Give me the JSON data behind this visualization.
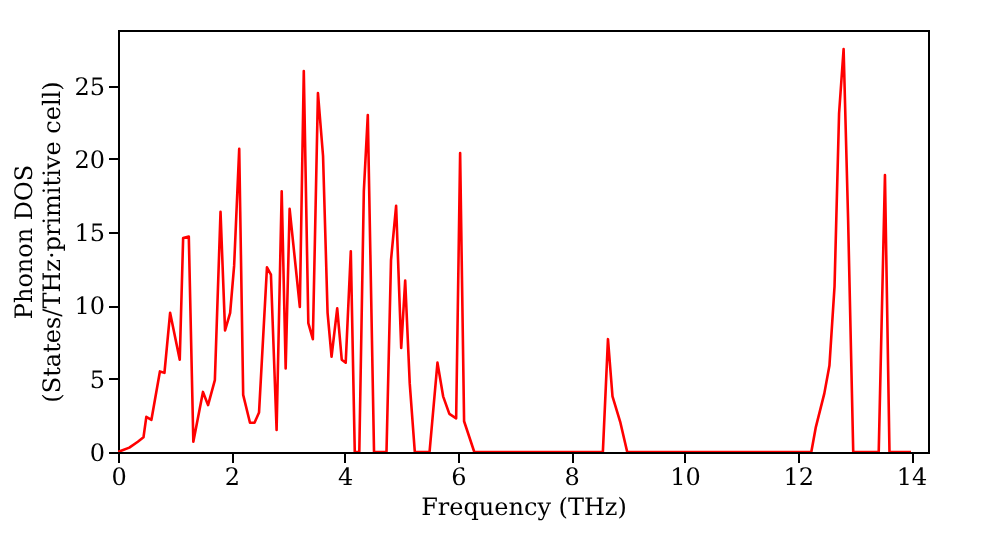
{
  "chart_data": {
    "type": "line",
    "xlabel": "Frequency (THz)",
    "ylabel": "Phonon DOS\n(States/THz·primitive cell)",
    "xlim": [
      0,
      14.3
    ],
    "ylim": [
      0,
      28.8
    ],
    "xticks": [
      0,
      2,
      4,
      6,
      8,
      10,
      12,
      14
    ],
    "yticks": [
      0,
      5,
      10,
      15,
      20,
      25
    ],
    "grid": false,
    "marker": "none",
    "line_style": "solid",
    "series": [
      {
        "color": "#ff0000",
        "x": [
          0,
          0.2,
          0.35,
          0.45,
          0.5,
          0.59,
          0.74,
          0.82,
          0.92,
          1.09,
          1.15,
          1.25,
          1.33,
          1.5,
          1.59,
          1.71,
          1.81,
          1.89,
          1.98,
          2.05,
          2.14,
          2.21,
          2.33,
          2.41,
          2.49,
          2.63,
          2.7,
          2.8,
          2.89,
          2.96,
          3.03,
          3.21,
          3.28,
          3.36,
          3.44,
          3.53,
          3.62,
          3.7,
          3.77,
          3.87,
          3.95,
          4.02,
          4.11,
          4.18,
          4.26,
          4.34,
          4.41,
          4.52,
          4.74,
          4.82,
          4.91,
          5.0,
          5.07,
          5.15,
          5.24,
          5.5,
          5.64,
          5.74,
          5.85,
          5.97,
          6.04,
          6.11,
          6.29,
          8.56,
          8.65,
          8.73,
          8.87,
          8.99,
          12.24,
          12.32,
          12.47,
          12.56,
          12.65,
          12.73,
          12.81,
          12.89,
          12.98,
          13.43,
          13.54,
          13.62,
          14.0
        ],
        "values": [
          0,
          0.3,
          0.7,
          1.0,
          2.4,
          2.2,
          5.5,
          5.4,
          9.5,
          6.3,
          14.6,
          14.7,
          0.7,
          4.1,
          3.2,
          4.9,
          16.4,
          8.3,
          9.5,
          12.7,
          20.7,
          3.9,
          2.0,
          2.0,
          2.7,
          12.6,
          12.1,
          1.5,
          17.8,
          5.7,
          16.6,
          9.9,
          26.0,
          8.8,
          7.7,
          24.5,
          20.2,
          9.5,
          6.5,
          9.8,
          6.3,
          6.1,
          13.7,
          0,
          0,
          17.8,
          23.0,
          0,
          0,
          13.1,
          16.8,
          7.1,
          11.7,
          4.7,
          0,
          0,
          6.1,
          3.8,
          2.6,
          2.3,
          20.4,
          2.1,
          0,
          0,
          7.7,
          3.8,
          2.0,
          0,
          0,
          1.7,
          4.0,
          5.9,
          11.3,
          23.1,
          27.5,
          15.8,
          0,
          0,
          18.9,
          0,
          0
        ]
      }
    ]
  }
}
